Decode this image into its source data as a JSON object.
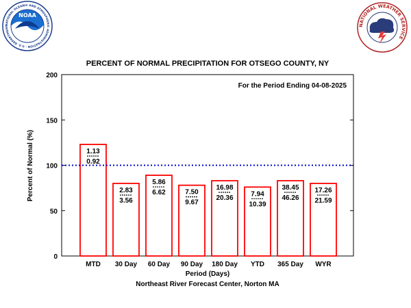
{
  "logos": {
    "left": {
      "center_text": "NOAA",
      "ring_text": "NATIONAL OCEANIC AND ATMOSPHERIC ADMINISTRATION · U.S. DEPARTMENT OF COMMERCE"
    },
    "right": {
      "ring_text": "NATIONAL WEATHER SERVICE"
    }
  },
  "chart_data": {
    "type": "bar",
    "title": "PERCENT OF NORMAL PRECIPITATION FOR OTSEGO COUNTY, NY",
    "subtitle": "For the Period Ending 04-08-2025",
    "xlabel": "Period (Days)",
    "ylabel": "Percent of Normal (%)",
    "footer": "Northeast River Forecast Center, Norton MA",
    "ylim": [
      0,
      200
    ],
    "yticks": [
      "0",
      "50",
      "100",
      "150",
      "200"
    ],
    "reference_line": 100,
    "bar_color": "#ff0000",
    "reference_color": "#0000cc",
    "categories": [
      "MTD",
      "30 Day",
      "60 Day",
      "90 Day",
      "180 Day",
      "YTD",
      "365 Day",
      "WYR"
    ],
    "values": [
      123,
      80,
      89,
      78,
      83,
      76,
      83,
      80
    ],
    "observed": [
      "1.13",
      "2.83",
      "5.86",
      "7.50",
      "16.98",
      "7.94",
      "38.45",
      "17.26"
    ],
    "normal": [
      "0.92",
      "3.56",
      "6.62",
      "9.67",
      "20.36",
      "10.39",
      "46.26",
      "21.59"
    ]
  }
}
